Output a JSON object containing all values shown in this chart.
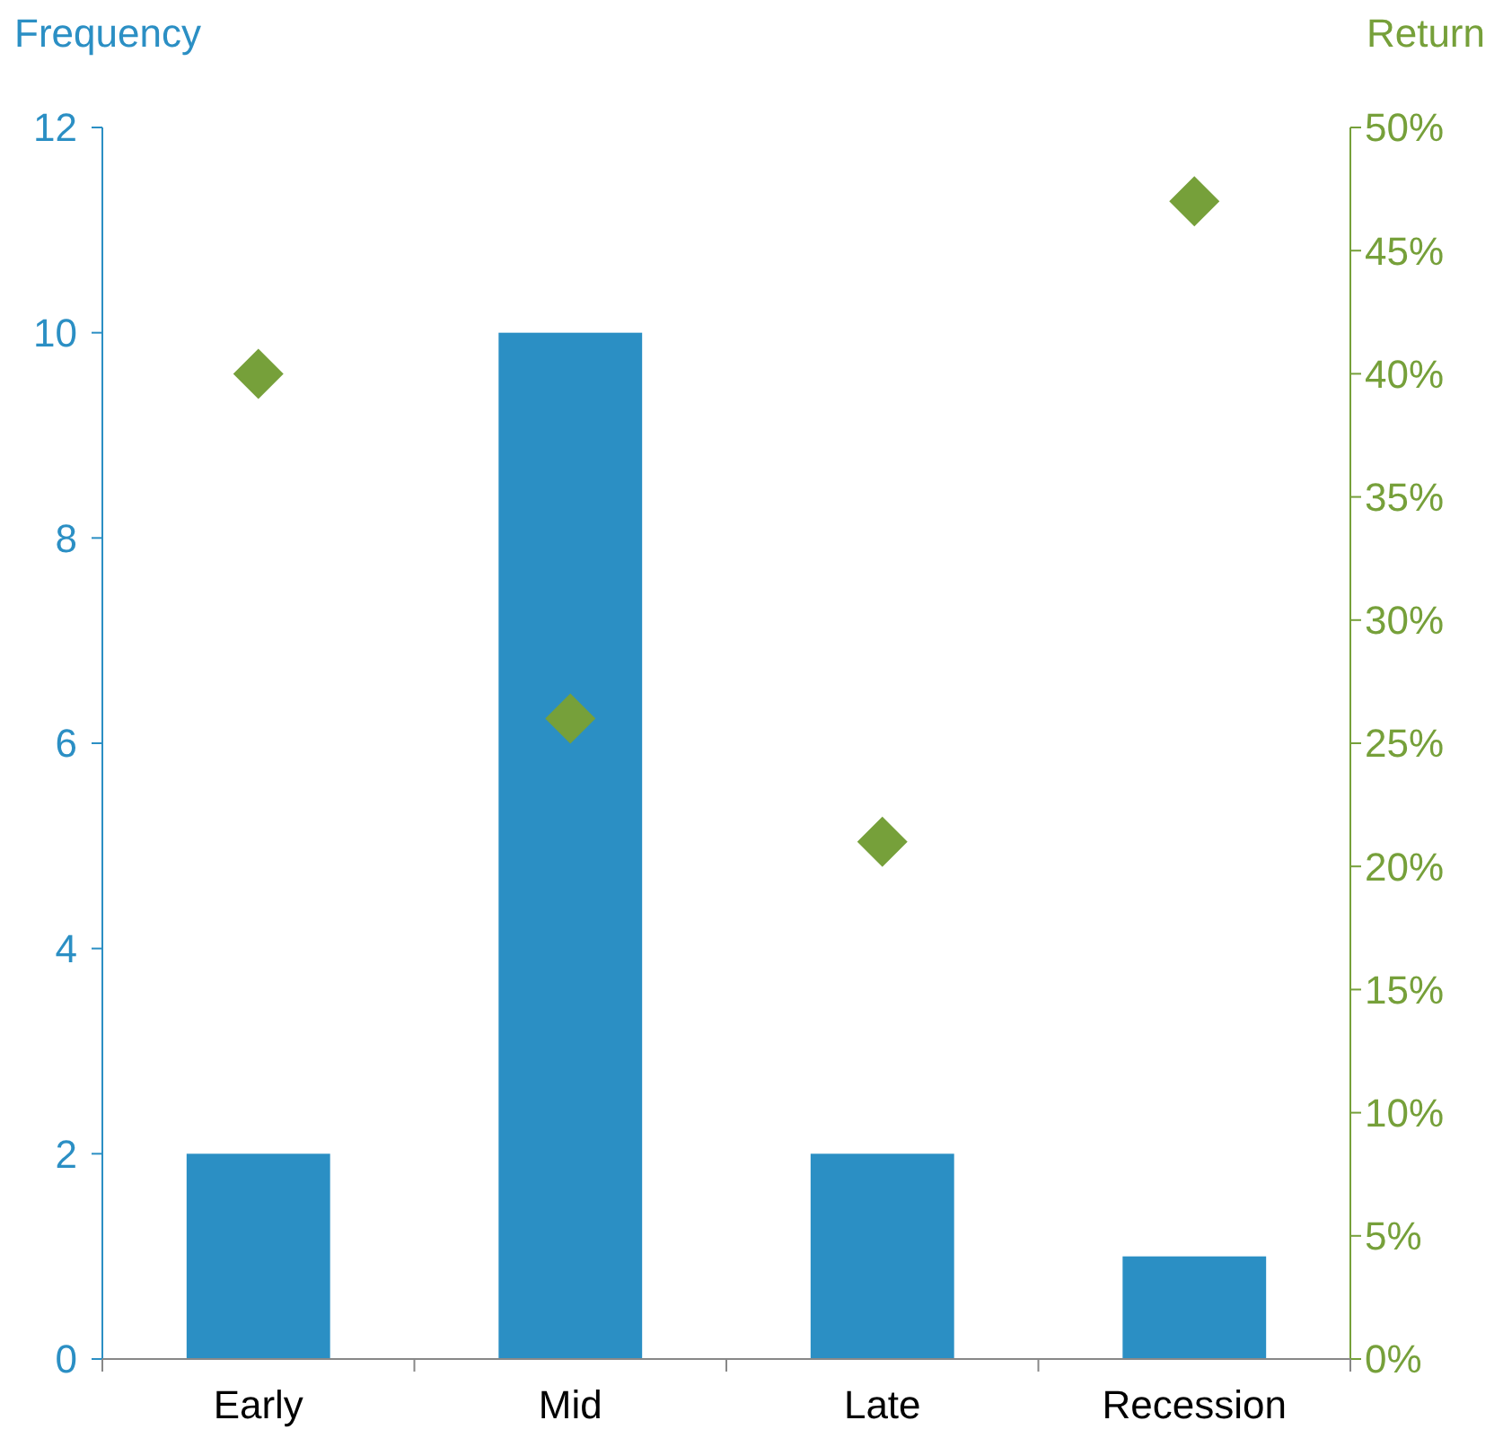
{
  "chart_data": {
    "type": "bar",
    "ylabel": "Frequency",
    "y2label": "Return",
    "categories": [
      "Early",
      "Mid",
      "Late",
      "Recession"
    ],
    "series": [
      {
        "color": "#2b8fc4",
        "values": [
          2,
          10,
          2,
          1
        ]
      },
      {
        "type": "scatter",
        "axis": "y2",
        "marker": "diamond",
        "color": "#76a03a",
        "values": [
          40,
          26,
          21,
          47
        ]
      }
    ],
    "ylim": [
      0,
      12
    ],
    "yticks": [
      0,
      2,
      4,
      6,
      8,
      10,
      12
    ],
    "y2lim": [
      0,
      50
    ],
    "y2ticks": [
      {
        "value": 0,
        "label": "0%"
      },
      {
        "value": 5,
        "label": "5%"
      },
      {
        "value": 10,
        "label": "10%"
      },
      {
        "value": 15,
        "label": "15%"
      },
      {
        "value": 20,
        "label": "20%"
      },
      {
        "value": 25,
        "label": "25%"
      },
      {
        "value": 30,
        "label": "30%"
      },
      {
        "value": 35,
        "label": "35%"
      },
      {
        "value": 40,
        "label": "40%"
      },
      {
        "value": 45,
        "label": "45%"
      },
      {
        "value": 50,
        "label": "50%"
      }
    ],
    "grid": false
  }
}
